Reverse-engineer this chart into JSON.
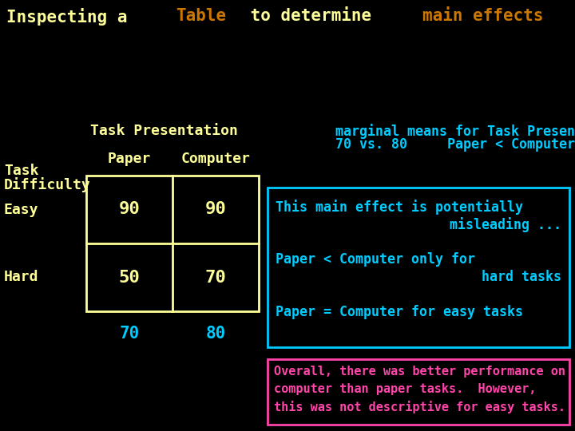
{
  "bg_color": "#000000",
  "title_segments": [
    {
      "text": "Inspecting a ",
      "color": "#ffff99"
    },
    {
      "text": "Table",
      "color": "#cc7700"
    },
    {
      "text": " to determine ",
      "color": "#ffff99"
    },
    {
      "text": "main effects",
      "color": "#cc7700"
    },
    {
      "text": " ...",
      "color": "#ffff99"
    }
  ],
  "task_pres_label": "Task Presentation",
  "task_pres_color": "#ffff99",
  "paper_label": "Paper",
  "paper_color": "#ffff99",
  "computer_label": "Computer",
  "computer_color": "#ffff99",
  "task_label": "Task",
  "task_color": "#ffff99",
  "difficulty_label": "Difficulty",
  "difficulty_color": "#ffff99",
  "easy_label": "Easy",
  "easy_color": "#ffff99",
  "hard_label": "Hard",
  "hard_color": "#ffff99",
  "cell_values": [
    [
      90,
      90
    ],
    [
      50,
      70
    ]
  ],
  "cell_color": "#ffff99",
  "marginal_70": "70",
  "marginal_80": "80",
  "marginal_color": "#00ccff",
  "table_border_color": "#ffff99",
  "right_box_border_color": "#00ccff",
  "bottom_box_border_color": "#ff44aa",
  "marginal_title": "marginal means for Task Presentation",
  "marginal_subtitle": "70 vs. 80     Paper < Computer",
  "marginal_text_color": "#00ccff",
  "box1_line1": "This main effect is potentially",
  "box1_line2": "misleading ...",
  "box1_line3": "Paper < Computer only for",
  "box1_line4": "hard tasks",
  "box1_line5": "Paper = Computer for easy tasks",
  "box1_color": "#00ccff",
  "box2_line1": "Overall, there was better performance on",
  "box2_line2": "computer than paper tasks.  However,",
  "box2_line3": "this was not descriptive for easy tasks.",
  "box2_color": "#ff44aa",
  "font_size_title": 15,
  "font_size_body": 12,
  "font_size_cell": 16,
  "font_size_marginal_header": 12,
  "font_size_box": 12,
  "font_size_bottom": 11
}
